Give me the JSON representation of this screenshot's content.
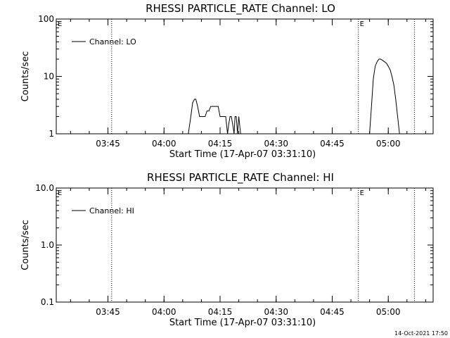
{
  "footer_timestamp": "14-Oct-2021 17:50",
  "chart_data": [
    {
      "type": "line",
      "title": "RHESSI PARTICLE_RATE Channel: LO",
      "xlabel": "Start Time (17-Apr-07 03:31:10)",
      "ylabel": "Counts/sec",
      "yscale": "log",
      "ylim": [
        1,
        100
      ],
      "yticks": [
        1,
        10,
        100
      ],
      "ytick_labels": [
        "1",
        "10",
        "100"
      ],
      "xlim": [
        "03:31:10",
        "05:12:00"
      ],
      "xticks": [
        "03:45",
        "04:00",
        "04:15",
        "04:30",
        "04:45",
        "05:00"
      ],
      "legend": {
        "placement": "top-left",
        "entries": [
          "Channel: LO"
        ]
      },
      "event_marks": [
        {
          "time": "03:31:10",
          "label": "E"
        },
        {
          "time": "03:46:00",
          "label": ""
        },
        {
          "time": "04:52:00",
          "label": "E"
        },
        {
          "time": "05:07:00",
          "label": ""
        }
      ],
      "series": [
        {
          "name": "Channel: LO",
          "x": [
            "04:06:30",
            "04:07:10",
            "04:07:40",
            "04:08:10",
            "04:08:30",
            "04:09:00",
            "04:09:30",
            "04:10:00",
            "04:10:30",
            "04:11:00",
            "04:11:30",
            "04:12:00",
            "04:12:30",
            "04:13:00",
            "04:13:20",
            "04:13:40",
            "04:14:00",
            "04:14:30",
            "04:15:00",
            "04:15:30",
            "04:16:00",
            "04:16:30",
            "04:17:00",
            "04:17:20",
            "04:17:40",
            "04:18:00",
            "04:18:30",
            "04:18:45",
            "04:19:00",
            "04:19:20",
            "04:19:40",
            "04:20:00",
            "04:20:30",
            "04:21:00",
            "04:55:00",
            "04:55:30",
            "04:56:00",
            "04:56:30",
            "04:57:00",
            "04:57:30",
            "04:58:00",
            "04:58:30",
            "04:59:00",
            "04:59:30",
            "05:00:00",
            "05:00:30",
            "05:01:00",
            "05:01:30",
            "05:02:00",
            "05:02:30",
            "05:03:00"
          ],
          "y": [
            1,
            2,
            3.5,
            4,
            4,
            3,
            2,
            2,
            2,
            2,
            2.5,
            2.5,
            3,
            3,
            3,
            3,
            3,
            3,
            2,
            2,
            2,
            2,
            1,
            1.5,
            2,
            2,
            1.3,
            1,
            2,
            2,
            1,
            2,
            1,
            1,
            1,
            3,
            9,
            15,
            18,
            20,
            20,
            19,
            18,
            17,
            15,
            13,
            10,
            7,
            4,
            2,
            1
          ]
        }
      ]
    },
    {
      "type": "line",
      "title": "RHESSI PARTICLE_RATE Channel: HI",
      "xlabel": "Start Time (17-Apr-07 03:31:10)",
      "ylabel": "Counts/sec",
      "yscale": "log",
      "ylim": [
        0.1,
        10
      ],
      "yticks": [
        0.1,
        1,
        10
      ],
      "ytick_labels": [
        "0.1",
        "1.0",
        "10.0"
      ],
      "xlim": [
        "03:31:10",
        "05:12:00"
      ],
      "xticks": [
        "03:45",
        "04:00",
        "04:15",
        "04:30",
        "04:45",
        "05:00"
      ],
      "legend": {
        "placement": "top-left",
        "entries": [
          "Channel: HI"
        ]
      },
      "event_marks": [
        {
          "time": "03:31:10",
          "label": "E"
        },
        {
          "time": "03:46:00",
          "label": ""
        },
        {
          "time": "04:52:00",
          "label": "E"
        },
        {
          "time": "05:07:00",
          "label": ""
        }
      ],
      "series": [
        {
          "name": "Channel: HI",
          "x": [],
          "y": []
        }
      ]
    }
  ]
}
